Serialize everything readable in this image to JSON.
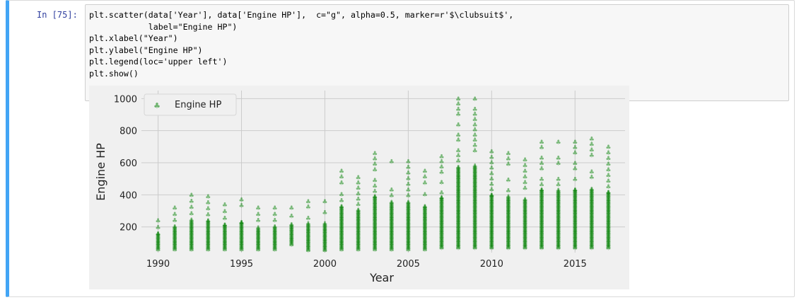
{
  "cell": {
    "prompt": "In [75]:",
    "code_lines": [
      "plt.scatter(data['Year'], data['Engine HP'],  c=\"g\", alpha=0.5, marker=r'$\\clubsuit$',",
      "            label=\"Engine HP\")",
      "plt.xlabel(\"Year\")",
      "plt.ylabel(\"Engine HP\")",
      "plt.legend(loc='upper left')",
      "plt.show()"
    ]
  },
  "colors": {
    "accent": "#42a5f5",
    "marker": "#008000",
    "plot_bg": "#f0f0f0",
    "grid": "#cbcbcb"
  },
  "chart_data": {
    "type": "scatter",
    "xlabel": "Year",
    "ylabel": "Engine HP",
    "xticks": [
      1990,
      1995,
      2000,
      2005,
      2010,
      2015
    ],
    "yticks": [
      200,
      400,
      600,
      800,
      1000
    ],
    "xlim": [
      1989,
      2018
    ],
    "ylim": [
      40,
      1050
    ],
    "legend": {
      "location": "upper-left",
      "label": "Engine HP"
    },
    "grid": true,
    "marker": "clubsuit",
    "alpha": 0.5,
    "year_ranges": [
      {
        "year": 1990,
        "min": 60,
        "max": 240
      },
      {
        "year": 1991,
        "min": 60,
        "max": 320
      },
      {
        "year": 1992,
        "min": 60,
        "max": 400
      },
      {
        "year": 1993,
        "min": 60,
        "max": 390
      },
      {
        "year": 1994,
        "min": 60,
        "max": 340
      },
      {
        "year": 1995,
        "min": 60,
        "max": 370
      },
      {
        "year": 1996,
        "min": 60,
        "max": 320
      },
      {
        "year": 1997,
        "min": 60,
        "max": 320
      },
      {
        "year": 1998,
        "min": 90,
        "max": 320
      },
      {
        "year": 1999,
        "min": 55,
        "max": 360
      },
      {
        "year": 2000,
        "min": 55,
        "max": 360
      },
      {
        "year": 2001,
        "min": 60,
        "max": 550
      },
      {
        "year": 2002,
        "min": 60,
        "max": 510
      },
      {
        "year": 2003,
        "min": 60,
        "max": 660
      },
      {
        "year": 2004,
        "min": 60,
        "max": 610
      },
      {
        "year": 2005,
        "min": 60,
        "max": 610
      },
      {
        "year": 2006,
        "min": 60,
        "max": 550
      },
      {
        "year": 2007,
        "min": 70,
        "max": 640
      },
      {
        "year": 2008,
        "min": 70,
        "max": 1000
      },
      {
        "year": 2009,
        "min": 70,
        "max": 1000
      },
      {
        "year": 2010,
        "min": 70,
        "max": 670
      },
      {
        "year": 2011,
        "min": 70,
        "max": 660
      },
      {
        "year": 2012,
        "min": 70,
        "max": 620
      },
      {
        "year": 2013,
        "min": 70,
        "max": 730
      },
      {
        "year": 2014,
        "min": 70,
        "max": 730
      },
      {
        "year": 2015,
        "min": 70,
        "max": 730
      },
      {
        "year": 2016,
        "min": 70,
        "max": 750
      },
      {
        "year": 2017,
        "min": 70,
        "max": 700
      }
    ]
  }
}
